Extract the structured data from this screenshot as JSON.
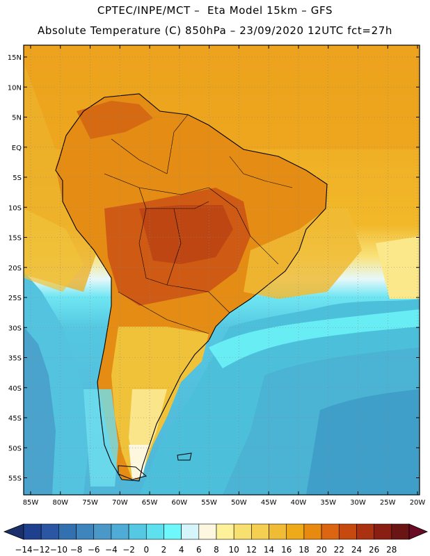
{
  "header": {
    "line1": "CPTEC/INPE/MCT –  Eta Model 15km – GFS",
    "line2": "Absolute Temperature (C) 850hPa – 23/09/2020 12UTC fct=27h"
  },
  "map": {
    "lat_labels": [
      "15N",
      "10N",
      "5N",
      "EQ",
      "5S",
      "10S",
      "15S",
      "20S",
      "25S",
      "30S",
      "35S",
      "40S",
      "45S",
      "50S",
      "55S"
    ],
    "lon_labels": [
      "85W",
      "80W",
      "75W",
      "70W",
      "65W",
      "60W",
      "55W",
      "50W",
      "45W",
      "40W",
      "35W",
      "30W",
      "25W",
      "20W"
    ],
    "gridlines": true
  },
  "colorbar": {
    "labels": [
      "-14",
      "-12",
      "-10",
      "-8",
      "-6",
      "-4",
      "-2",
      "0",
      "2",
      "4",
      "6",
      "8",
      "10",
      "12",
      "14",
      "16",
      "18",
      "20",
      "22",
      "24",
      "26",
      "28"
    ],
    "colors": [
      "#1f3f8f",
      "#2a56a3",
      "#3370b0",
      "#3f85bd",
      "#4a98c8",
      "#4eacd6",
      "#55c8e4",
      "#5fe0ef",
      "#6ff8fb",
      "#d5f5fb",
      "#fdf7df",
      "#fdf29a",
      "#f8e070",
      "#f5cf52",
      "#f0bb35",
      "#eeaa18",
      "#e88a10",
      "#db6510",
      "#c64a10",
      "#aa3210",
      "#8a1e12",
      "#6a1414"
    ],
    "left_arrow_color": "#1b2f6a",
    "right_arrow_color": "#6a0b25"
  }
}
